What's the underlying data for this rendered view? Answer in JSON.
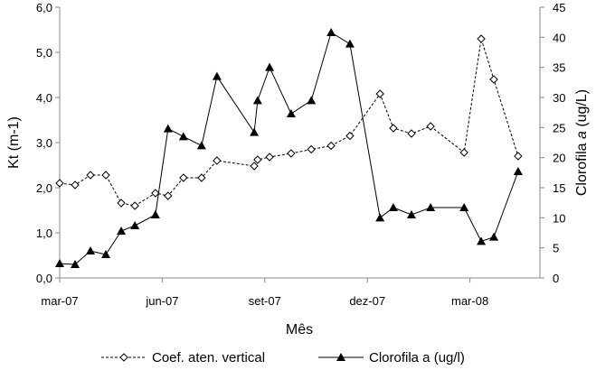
{
  "chart_data": {
    "type": "line",
    "xlabel": "Mês",
    "ylabel_left": "Kt (m-1)",
    "ylabel_left_parts": {
      "main": "Kt (m",
      "sup": "-1",
      "end": ")"
    },
    "ylabel_right": "Clorofila a (ug/L)",
    "ylabel_right_parts": {
      "pre": "Clorofila ",
      "ital": "a",
      "post": " (ug/L)"
    },
    "x_unit": "months since mar-07",
    "x_ticks": [
      {
        "pos": 0,
        "label": "mar-07"
      },
      {
        "pos": 3,
        "label": "jun-07"
      },
      {
        "pos": 6,
        "label": "set-07"
      },
      {
        "pos": 9,
        "label": "dez-07"
      },
      {
        "pos": 12,
        "label": "mar-08"
      }
    ],
    "xlim": [
      0,
      14.05
    ],
    "ylim_left": [
      0,
      6
    ],
    "ylim_right": [
      0,
      45
    ],
    "y_ticks_left": [
      "0,0",
      "1,0",
      "2,0",
      "3,0",
      "4,0",
      "5,0",
      "6,0"
    ],
    "y_ticks_right": [
      "0",
      "5",
      "10",
      "15",
      "20",
      "25",
      "30",
      "35",
      "40",
      "45"
    ],
    "legend_position": "bottom",
    "x": [
      0,
      0.45,
      0.9,
      1.35,
      1.8,
      2.2,
      2.8,
      3.17,
      3.62,
      4.15,
      4.6,
      5.69,
      5.79,
      6.14,
      6.77,
      7.36,
      7.94,
      8.49,
      9.37,
      9.76,
      10.29,
      10.85,
      11.83,
      12.33,
      12.7,
      13.41
    ],
    "series": [
      {
        "name": "Coef. aten. vertical",
        "axis": "left",
        "marker": "diamond-open",
        "line": "dashed",
        "values": [
          2.1,
          2.06,
          2.28,
          2.28,
          1.66,
          1.6,
          1.88,
          1.82,
          2.22,
          2.22,
          2.6,
          2.48,
          2.62,
          2.68,
          2.76,
          2.85,
          2.93,
          3.15,
          4.08,
          3.32,
          3.2,
          3.36,
          2.78,
          5.3,
          4.4,
          2.7
        ]
      },
      {
        "name": "Clorofila a (ug/l)",
        "axis": "right",
        "marker": "triangle-filled",
        "line": "solid",
        "values": [
          2.4,
          2.25,
          4.5,
          3.9,
          7.8,
          8.7,
          10.5,
          24.8,
          23.5,
          22,
          33.5,
          24.2,
          29.5,
          35,
          27.3,
          29.5,
          40.8,
          38.9,
          10,
          11.7,
          10.5,
          11.7,
          11.7,
          6.1,
          6.8,
          17.7
        ]
      }
    ]
  }
}
